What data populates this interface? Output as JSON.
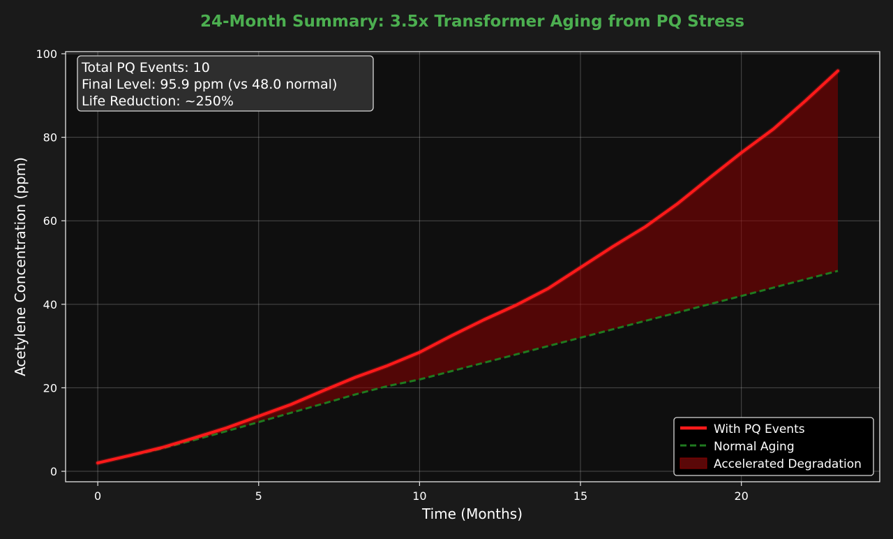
{
  "chart_data": {
    "type": "line",
    "title": "24-Month Summary: 3.5x Transformer Aging from PQ Stress",
    "xlabel": "Time (Months)",
    "ylabel": "Acetylene Concentration (ppm)",
    "xlim": [
      -1,
      24.3
    ],
    "ylim": [
      -2.5,
      100.5
    ],
    "xticks": [
      0,
      5,
      10,
      15,
      20
    ],
    "yticks": [
      0,
      20,
      40,
      60,
      80,
      100
    ],
    "grid": true,
    "legend_position": "lower-right",
    "x": [
      0,
      1,
      2,
      3,
      4,
      5,
      6,
      7,
      8,
      9,
      10,
      11,
      12,
      13,
      14,
      15,
      16,
      17,
      18,
      19,
      20,
      21,
      22,
      23
    ],
    "series": [
      {
        "name": "With PQ Events",
        "color": "#ff1a1a",
        "style": "solid",
        "values": [
          2.0,
          3.8,
          5.7,
          8.0,
          10.4,
          13.2,
          16.0,
          19.3,
          22.5,
          25.3,
          28.5,
          32.5,
          36.3,
          39.8,
          43.8,
          48.8,
          53.8,
          58.5,
          64.0,
          70.2,
          76.3,
          82.0,
          88.8,
          95.9
        ]
      },
      {
        "name": "Normal Aging",
        "color": "#1f7a1f",
        "style": "dashed",
        "values": [
          2.0,
          3.7,
          5.5,
          7.5,
          9.6,
          11.8,
          14.0,
          16.2,
          18.4,
          20.4,
          22.0,
          24.0,
          26.0,
          28.0,
          30.0,
          32.0,
          34.0,
          36.0,
          38.0,
          40.0,
          42.0,
          44.0,
          46.0,
          48.0
        ]
      }
    ],
    "fill_between": {
      "name": "Accelerated Degradation",
      "color": "#8b0000"
    },
    "annotation": {
      "lines": [
        "Total PQ Events: 10",
        "Final Level: 95.9 ppm (vs 48.0 normal)",
        "Life Reduction: ~250%"
      ]
    },
    "colors": {
      "background": "#1a1a1a",
      "plot_background": "#0f0f0f",
      "title": "#4caf50",
      "text": "#ffffff"
    }
  }
}
